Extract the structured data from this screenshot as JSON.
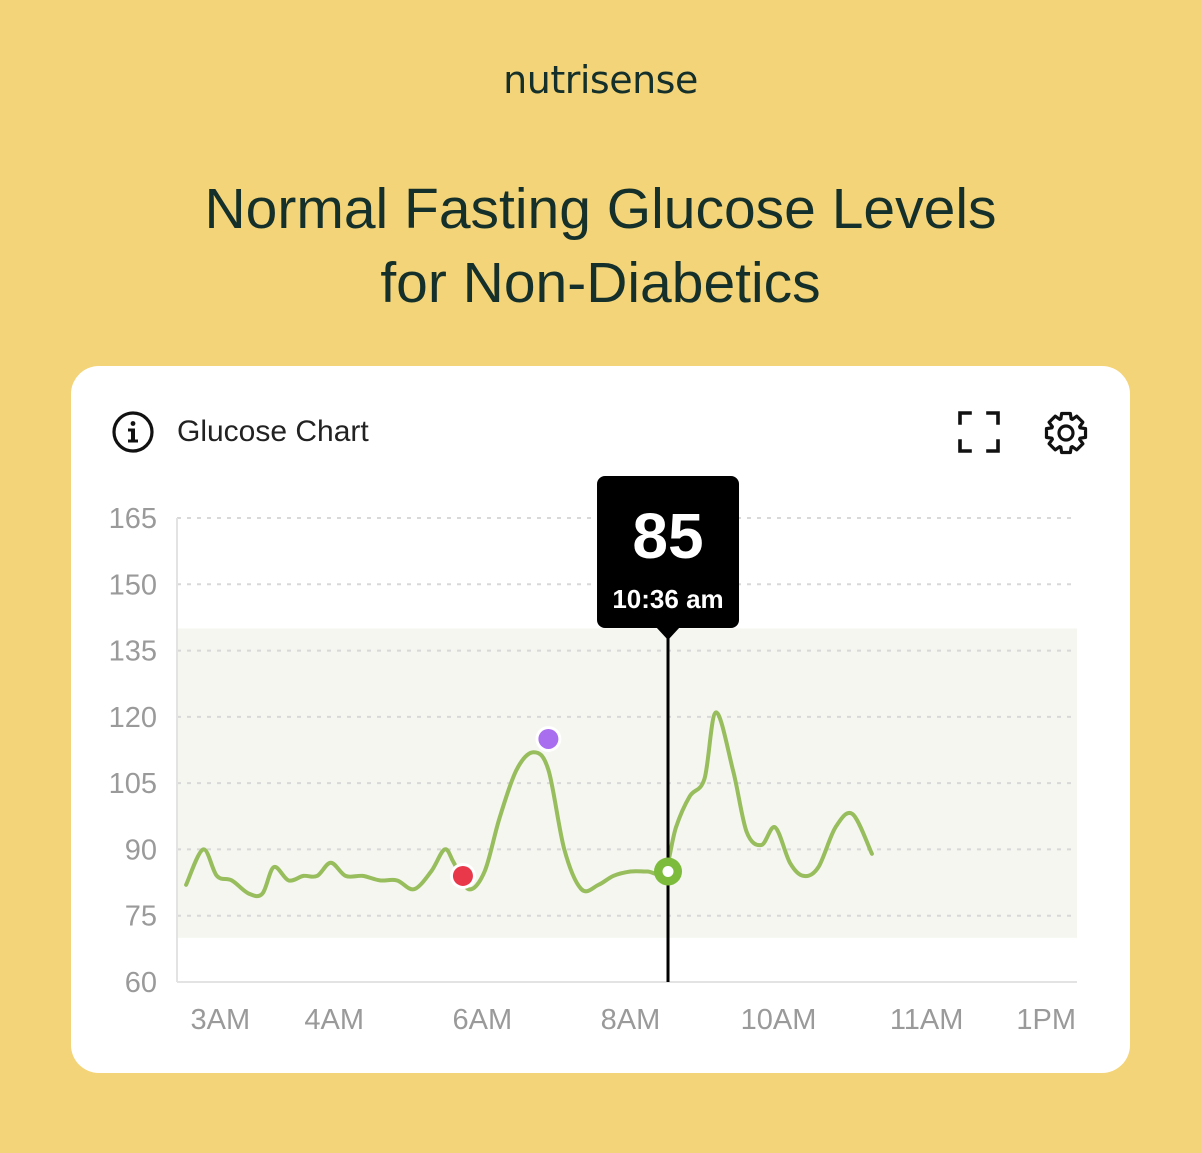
{
  "brand": "nutrisense",
  "headline": {
    "line1": "Normal Fasting Glucose Levels",
    "line2": "for Non-Diabetics"
  },
  "card": {
    "title": "Glucose Chart",
    "icons": {
      "info": "info-circle-icon",
      "expand": "fullscreen-expand-icon",
      "settings": "gear-icon"
    }
  },
  "colors": {
    "background": "#f4d479",
    "line": "#97bd5d",
    "target_band": "#f4f6ef",
    "marker_red": "#e8384a",
    "marker_purple": "#a96ef0",
    "marker_green": "#7dbb3c",
    "tooltip": "#000000"
  },
  "chart_data": {
    "type": "line",
    "title": "Glucose Chart",
    "xlabel": "",
    "ylabel": "",
    "y_ticks": [
      165,
      150,
      135,
      120,
      105,
      90,
      75,
      60
    ],
    "ylim": [
      60,
      165
    ],
    "x_ticks": [
      {
        "label": "3AM",
        "t": 3.0
      },
      {
        "label": "4AM",
        "t": 4.0
      },
      {
        "label": "6AM",
        "t": 5.3
      },
      {
        "label": "8AM",
        "t": 6.6
      },
      {
        "label": "10AM",
        "t": 7.9
      },
      {
        "label": "11AM",
        "t": 9.2
      },
      {
        "label": "1PM",
        "t": 10.25
      }
    ],
    "xlim": [
      2.62,
      10.52
    ],
    "target_range": [
      70,
      140
    ],
    "grid": true,
    "series": [
      {
        "points": [
          [
            2.7,
            82
          ],
          [
            2.85,
            90
          ],
          [
            2.97,
            84
          ],
          [
            3.1,
            83
          ],
          [
            3.25,
            80
          ],
          [
            3.37,
            80
          ],
          [
            3.47,
            86
          ],
          [
            3.6,
            83
          ],
          [
            3.73,
            84
          ],
          [
            3.85,
            84
          ],
          [
            3.97,
            87
          ],
          [
            4.1,
            84
          ],
          [
            4.25,
            84
          ],
          [
            4.4,
            83
          ],
          [
            4.55,
            83
          ],
          [
            4.7,
            81
          ],
          [
            4.85,
            85
          ],
          [
            4.97,
            90
          ],
          [
            5.05,
            87
          ],
          [
            5.18,
            81
          ],
          [
            5.32,
            85
          ],
          [
            5.45,
            97
          ],
          [
            5.6,
            108
          ],
          [
            5.75,
            112
          ],
          [
            5.88,
            108
          ],
          [
            6.02,
            90
          ],
          [
            6.17,
            81
          ],
          [
            6.32,
            82
          ],
          [
            6.45,
            84
          ],
          [
            6.6,
            85
          ],
          [
            6.75,
            85
          ],
          [
            6.9,
            85
          ],
          [
            7.0,
            95
          ],
          [
            7.12,
            102
          ],
          [
            7.25,
            106
          ],
          [
            7.35,
            121
          ],
          [
            7.5,
            108
          ],
          [
            7.62,
            94
          ],
          [
            7.75,
            91
          ],
          [
            7.87,
            95
          ],
          [
            8.0,
            87
          ],
          [
            8.12,
            84
          ],
          [
            8.25,
            86
          ],
          [
            8.4,
            95
          ],
          [
            8.55,
            98
          ],
          [
            8.72,
            89
          ]
        ]
      }
    ],
    "markers": [
      {
        "t": 5.13,
        "value": 84,
        "color": "red"
      },
      {
        "t": 5.88,
        "value": 115,
        "color": "purple"
      },
      {
        "t": 6.93,
        "value": 85,
        "color": "green",
        "selected": true
      }
    ],
    "tooltip": {
      "value": "85",
      "time": "10:36 am"
    }
  }
}
